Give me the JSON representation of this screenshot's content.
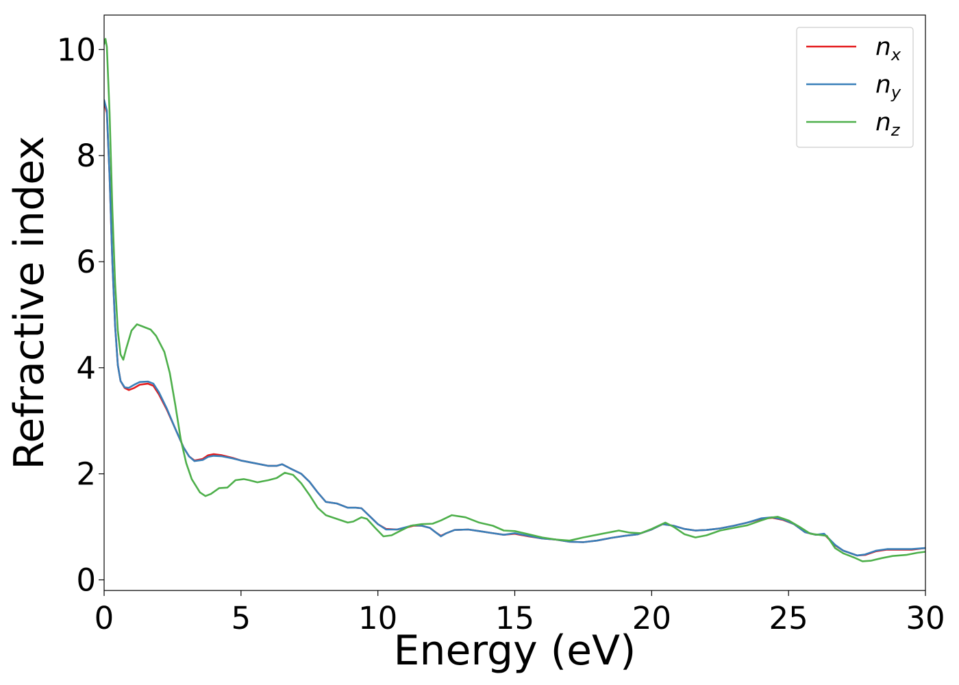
{
  "chart_data": {
    "type": "line",
    "title": "",
    "xlabel": "Energy (eV)",
    "ylabel": "Refractive index",
    "xlim": [
      0,
      30
    ],
    "ylim": [
      -0.2,
      10.65
    ],
    "xticks": [
      0,
      5,
      10,
      15,
      20,
      25,
      30
    ],
    "yticks": [
      0,
      2,
      4,
      6,
      8,
      10
    ],
    "grid": false,
    "legend_position": "top-right",
    "series": [
      {
        "name": "n",
        "subscript": "x",
        "color": "#e41a1c",
        "points": [
          [
            0,
            9.0
          ],
          [
            0.1,
            8.8
          ],
          [
            0.2,
            7.6
          ],
          [
            0.3,
            6.0
          ],
          [
            0.4,
            4.8
          ],
          [
            0.5,
            4.05
          ],
          [
            0.6,
            3.75
          ],
          [
            0.75,
            3.62
          ],
          [
            0.9,
            3.58
          ],
          [
            1.1,
            3.62
          ],
          [
            1.3,
            3.68
          ],
          [
            1.6,
            3.7
          ],
          [
            1.8,
            3.66
          ],
          [
            2.0,
            3.5
          ],
          [
            2.3,
            3.2
          ],
          [
            2.6,
            2.85
          ],
          [
            2.9,
            2.5
          ],
          [
            3.1,
            2.33
          ],
          [
            3.3,
            2.25
          ],
          [
            3.6,
            2.28
          ],
          [
            3.8,
            2.35
          ],
          [
            4.0,
            2.37
          ],
          [
            4.3,
            2.35
          ],
          [
            4.7,
            2.3
          ],
          [
            5.0,
            2.25
          ],
          [
            5.5,
            2.2
          ],
          [
            6.0,
            2.15
          ],
          [
            6.3,
            2.15
          ],
          [
            6.5,
            2.18
          ],
          [
            6.8,
            2.1
          ],
          [
            7.2,
            2.0
          ],
          [
            7.5,
            1.85
          ],
          [
            7.8,
            1.65
          ],
          [
            8.1,
            1.47
          ],
          [
            8.5,
            1.44
          ],
          [
            8.9,
            1.36
          ],
          [
            9.2,
            1.36
          ],
          [
            9.4,
            1.35
          ],
          [
            9.7,
            1.2
          ],
          [
            10.0,
            1.05
          ],
          [
            10.3,
            0.96
          ],
          [
            10.7,
            0.95
          ],
          [
            11.0,
            0.98
          ],
          [
            11.3,
            1.02
          ],
          [
            11.6,
            1.02
          ],
          [
            11.9,
            0.98
          ],
          [
            12.1,
            0.9
          ],
          [
            12.3,
            0.83
          ],
          [
            12.5,
            0.88
          ],
          [
            12.8,
            0.94
          ],
          [
            13.3,
            0.95
          ],
          [
            13.7,
            0.92
          ],
          [
            14.2,
            0.88
          ],
          [
            14.6,
            0.85
          ],
          [
            15.0,
            0.87
          ],
          [
            15.5,
            0.82
          ],
          [
            16.0,
            0.78
          ],
          [
            16.5,
            0.76
          ],
          [
            17.0,
            0.72
          ],
          [
            17.5,
            0.71
          ],
          [
            18.0,
            0.74
          ],
          [
            18.5,
            0.79
          ],
          [
            19.0,
            0.83
          ],
          [
            19.5,
            0.86
          ],
          [
            20.0,
            0.95
          ],
          [
            20.4,
            1.05
          ],
          [
            20.8,
            1.02
          ],
          [
            21.2,
            0.96
          ],
          [
            21.6,
            0.93
          ],
          [
            22.0,
            0.94
          ],
          [
            22.5,
            0.97
          ],
          [
            23.0,
            1.02
          ],
          [
            23.5,
            1.08
          ],
          [
            24.0,
            1.15
          ],
          [
            24.4,
            1.17
          ],
          [
            24.8,
            1.13
          ],
          [
            25.2,
            1.05
          ],
          [
            25.6,
            0.9
          ],
          [
            26.0,
            0.85
          ],
          [
            26.3,
            0.86
          ],
          [
            26.7,
            0.65
          ],
          [
            27.0,
            0.55
          ],
          [
            27.5,
            0.46
          ],
          [
            27.8,
            0.47
          ],
          [
            28.2,
            0.54
          ],
          [
            28.6,
            0.57
          ],
          [
            29.0,
            0.57
          ],
          [
            29.5,
            0.57
          ],
          [
            30.0,
            0.6
          ]
        ]
      },
      {
        "name": "n",
        "subscript": "y",
        "color": "#377eb8",
        "points": [
          [
            0,
            9.05
          ],
          [
            0.1,
            8.85
          ],
          [
            0.2,
            7.6
          ],
          [
            0.3,
            6.0
          ],
          [
            0.4,
            4.8
          ],
          [
            0.5,
            4.05
          ],
          [
            0.6,
            3.75
          ],
          [
            0.75,
            3.63
          ],
          [
            0.9,
            3.62
          ],
          [
            1.1,
            3.68
          ],
          [
            1.3,
            3.73
          ],
          [
            1.6,
            3.74
          ],
          [
            1.8,
            3.7
          ],
          [
            2.0,
            3.54
          ],
          [
            2.3,
            3.22
          ],
          [
            2.6,
            2.85
          ],
          [
            2.9,
            2.5
          ],
          [
            3.1,
            2.33
          ],
          [
            3.3,
            2.24
          ],
          [
            3.6,
            2.26
          ],
          [
            3.8,
            2.32
          ],
          [
            4.0,
            2.34
          ],
          [
            4.3,
            2.33
          ],
          [
            4.7,
            2.29
          ],
          [
            5.0,
            2.25
          ],
          [
            5.5,
            2.2
          ],
          [
            6.0,
            2.15
          ],
          [
            6.3,
            2.15
          ],
          [
            6.5,
            2.18
          ],
          [
            6.8,
            2.1
          ],
          [
            7.2,
            2.0
          ],
          [
            7.5,
            1.85
          ],
          [
            7.8,
            1.65
          ],
          [
            8.1,
            1.47
          ],
          [
            8.5,
            1.44
          ],
          [
            8.9,
            1.36
          ],
          [
            9.2,
            1.36
          ],
          [
            9.4,
            1.35
          ],
          [
            9.7,
            1.2
          ],
          [
            10.0,
            1.05
          ],
          [
            10.3,
            0.95
          ],
          [
            10.7,
            0.95
          ],
          [
            11.0,
            0.99
          ],
          [
            11.3,
            1.03
          ],
          [
            11.6,
            1.02
          ],
          [
            11.9,
            0.98
          ],
          [
            12.1,
            0.9
          ],
          [
            12.3,
            0.82
          ],
          [
            12.5,
            0.88
          ],
          [
            12.8,
            0.94
          ],
          [
            13.3,
            0.95
          ],
          [
            13.7,
            0.92
          ],
          [
            14.2,
            0.88
          ],
          [
            14.6,
            0.85
          ],
          [
            15.0,
            0.88
          ],
          [
            15.5,
            0.83
          ],
          [
            16.0,
            0.78
          ],
          [
            16.5,
            0.76
          ],
          [
            17.0,
            0.72
          ],
          [
            17.5,
            0.71
          ],
          [
            18.0,
            0.74
          ],
          [
            18.5,
            0.79
          ],
          [
            19.0,
            0.83
          ],
          [
            19.5,
            0.86
          ],
          [
            20.0,
            0.95
          ],
          [
            20.4,
            1.05
          ],
          [
            20.8,
            1.02
          ],
          [
            21.2,
            0.96
          ],
          [
            21.6,
            0.93
          ],
          [
            22.0,
            0.94
          ],
          [
            22.5,
            0.97
          ],
          [
            23.0,
            1.02
          ],
          [
            23.5,
            1.08
          ],
          [
            24.0,
            1.16
          ],
          [
            24.4,
            1.18
          ],
          [
            24.8,
            1.14
          ],
          [
            25.2,
            1.05
          ],
          [
            25.6,
            0.9
          ],
          [
            26.0,
            0.85
          ],
          [
            26.3,
            0.87
          ],
          [
            26.7,
            0.66
          ],
          [
            27.0,
            0.55
          ],
          [
            27.5,
            0.46
          ],
          [
            27.8,
            0.48
          ],
          [
            28.2,
            0.55
          ],
          [
            28.6,
            0.58
          ],
          [
            29.0,
            0.58
          ],
          [
            29.5,
            0.58
          ],
          [
            30.0,
            0.6
          ]
        ]
      },
      {
        "name": "n",
        "subscript": "z",
        "color": "#4daf4a",
        "points": [
          [
            0,
            10.1
          ],
          [
            0.05,
            10.2
          ],
          [
            0.1,
            10.05
          ],
          [
            0.2,
            8.8
          ],
          [
            0.3,
            7.0
          ],
          [
            0.4,
            5.6
          ],
          [
            0.5,
            4.7
          ],
          [
            0.6,
            4.25
          ],
          [
            0.7,
            4.15
          ],
          [
            0.8,
            4.35
          ],
          [
            1.0,
            4.7
          ],
          [
            1.2,
            4.82
          ],
          [
            1.4,
            4.78
          ],
          [
            1.7,
            4.72
          ],
          [
            1.9,
            4.6
          ],
          [
            2.2,
            4.3
          ],
          [
            2.4,
            3.9
          ],
          [
            2.6,
            3.3
          ],
          [
            2.8,
            2.65
          ],
          [
            3.0,
            2.2
          ],
          [
            3.2,
            1.9
          ],
          [
            3.5,
            1.65
          ],
          [
            3.7,
            1.58
          ],
          [
            3.9,
            1.62
          ],
          [
            4.2,
            1.73
          ],
          [
            4.5,
            1.74
          ],
          [
            4.8,
            1.88
          ],
          [
            5.1,
            1.9
          ],
          [
            5.3,
            1.88
          ],
          [
            5.6,
            1.84
          ],
          [
            6.0,
            1.88
          ],
          [
            6.3,
            1.92
          ],
          [
            6.6,
            2.02
          ],
          [
            6.9,
            1.98
          ],
          [
            7.2,
            1.82
          ],
          [
            7.5,
            1.6
          ],
          [
            7.8,
            1.36
          ],
          [
            8.1,
            1.22
          ],
          [
            8.5,
            1.15
          ],
          [
            8.9,
            1.08
          ],
          [
            9.1,
            1.1
          ],
          [
            9.4,
            1.18
          ],
          [
            9.6,
            1.15
          ],
          [
            9.9,
            0.98
          ],
          [
            10.2,
            0.82
          ],
          [
            10.5,
            0.84
          ],
          [
            10.8,
            0.92
          ],
          [
            11.2,
            1.02
          ],
          [
            11.6,
            1.05
          ],
          [
            12.0,
            1.06
          ],
          [
            12.3,
            1.12
          ],
          [
            12.7,
            1.22
          ],
          [
            13.2,
            1.18
          ],
          [
            13.7,
            1.08
          ],
          [
            14.2,
            1.02
          ],
          [
            14.6,
            0.93
          ],
          [
            15.0,
            0.92
          ],
          [
            15.5,
            0.86
          ],
          [
            16.0,
            0.8
          ],
          [
            16.5,
            0.76
          ],
          [
            17.0,
            0.74
          ],
          [
            17.5,
            0.8
          ],
          [
            18.0,
            0.85
          ],
          [
            18.5,
            0.9
          ],
          [
            18.8,
            0.93
          ],
          [
            19.2,
            0.89
          ],
          [
            19.6,
            0.88
          ],
          [
            20.0,
            0.96
          ],
          [
            20.5,
            1.08
          ],
          [
            20.8,
            1.0
          ],
          [
            21.2,
            0.86
          ],
          [
            21.6,
            0.8
          ],
          [
            22.0,
            0.84
          ],
          [
            22.5,
            0.93
          ],
          [
            23.0,
            0.98
          ],
          [
            23.5,
            1.03
          ],
          [
            24.0,
            1.12
          ],
          [
            24.3,
            1.17
          ],
          [
            24.6,
            1.19
          ],
          [
            25.0,
            1.12
          ],
          [
            25.4,
            1.0
          ],
          [
            25.8,
            0.87
          ],
          [
            26.1,
            0.85
          ],
          [
            26.4,
            0.83
          ],
          [
            26.7,
            0.6
          ],
          [
            27.0,
            0.5
          ],
          [
            27.4,
            0.42
          ],
          [
            27.7,
            0.35
          ],
          [
            28.0,
            0.36
          ],
          [
            28.4,
            0.41
          ],
          [
            28.8,
            0.45
          ],
          [
            29.3,
            0.47
          ],
          [
            29.7,
            0.51
          ],
          [
            30.0,
            0.53
          ]
        ]
      }
    ]
  }
}
